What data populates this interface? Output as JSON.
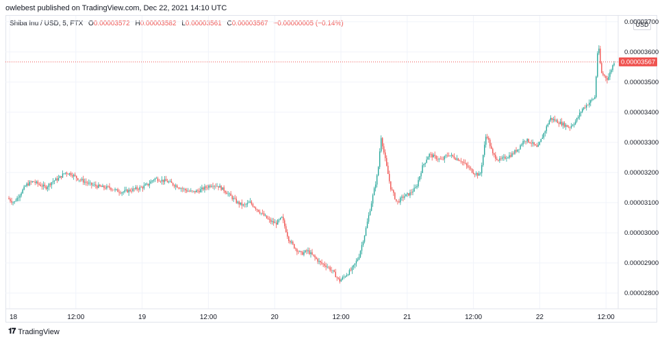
{
  "header": {
    "published": "owlebest published on TradingView.com, Dec 22, 2021 14:10 UTC"
  },
  "legend": {
    "symbol": "Shiba Inu / USD, 5, FTX",
    "o_label": "O",
    "o_value": "0.00003572",
    "h_label": "H",
    "h_value": "0.00003582",
    "l_label": "L",
    "l_value": "0.00003561",
    "c_label": "C",
    "c_value": "0.00003567",
    "change": "−0.00000005 (−0.14%)"
  },
  "currency_button": "USD",
  "footer": {
    "brand": "TradingView"
  },
  "colors": {
    "up": "#26a69a",
    "down": "#ef5350",
    "price_line": "#ef5350",
    "grid": "#f0f3fa"
  },
  "chart_data": {
    "type": "candlestick",
    "ylim": [
      2.75e-05,
      3.72e-05
    ],
    "y_ticks": [
      "0.00003700",
      "0.00003600",
      "0.00003500",
      "0.00003400",
      "0.00003300",
      "0.00003200",
      "0.00003100",
      "0.00003000",
      "0.00002900",
      "0.00002800"
    ],
    "x_ticks": [
      "18",
      "12:00",
      "19",
      "12:00",
      "20",
      "12:00",
      "21",
      "12:00",
      "22",
      "12:00"
    ],
    "last_price": "0.00003567",
    "price_path": [
      [
        0,
        3.115
      ],
      [
        2,
        3.1
      ],
      [
        4,
        3.13
      ],
      [
        6,
        3.16
      ],
      [
        8,
        3.17
      ],
      [
        10,
        3.16
      ],
      [
        12,
        3.15
      ],
      [
        14,
        3.17
      ],
      [
        16,
        3.18
      ],
      [
        18,
        3.2
      ],
      [
        20,
        3.195
      ],
      [
        22,
        3.18
      ],
      [
        24,
        3.17
      ],
      [
        26,
        3.16
      ],
      [
        28,
        3.155
      ],
      [
        30,
        3.15
      ],
      [
        32,
        3.15
      ],
      [
        34,
        3.14
      ],
      [
        36,
        3.135
      ],
      [
        38,
        3.14
      ],
      [
        40,
        3.145
      ],
      [
        42,
        3.15
      ],
      [
        44,
        3.16
      ],
      [
        46,
        3.18
      ],
      [
        48,
        3.175
      ],
      [
        50,
        3.17
      ],
      [
        52,
        3.16
      ],
      [
        54,
        3.15
      ],
      [
        56,
        3.14
      ],
      [
        58,
        3.135
      ],
      [
        60,
        3.14
      ],
      [
        62,
        3.15
      ],
      [
        64,
        3.16
      ],
      [
        66,
        3.155
      ],
      [
        68,
        3.14
      ],
      [
        70,
        3.12
      ],
      [
        72,
        3.1
      ],
      [
        74,
        3.09
      ],
      [
        76,
        3.1
      ],
      [
        78,
        3.08
      ],
      [
        80,
        3.06
      ],
      [
        82,
        3.04
      ],
      [
        84,
        3.03
      ],
      [
        86,
        3.05
      ],
      [
        88,
        2.98
      ],
      [
        90,
        2.95
      ],
      [
        92,
        2.93
      ],
      [
        94,
        2.94
      ],
      [
        96,
        2.92
      ],
      [
        98,
        2.9
      ],
      [
        100,
        2.89
      ],
      [
        102,
        2.87
      ],
      [
        104,
        2.84
      ],
      [
        106,
        2.86
      ],
      [
        108,
        2.88
      ],
      [
        110,
        2.92
      ],
      [
        112,
        3.0
      ],
      [
        114,
        3.1
      ],
      [
        116,
        3.2
      ],
      [
        117,
        3.32
      ],
      [
        118,
        3.26
      ],
      [
        120,
        3.15
      ],
      [
        122,
        3.1
      ],
      [
        124,
        3.12
      ],
      [
        126,
        3.13
      ],
      [
        128,
        3.15
      ],
      [
        130,
        3.22
      ],
      [
        132,
        3.26
      ],
      [
        134,
        3.25
      ],
      [
        136,
        3.24
      ],
      [
        138,
        3.26
      ],
      [
        140,
        3.25
      ],
      [
        142,
        3.24
      ],
      [
        144,
        3.22
      ],
      [
        146,
        3.2
      ],
      [
        148,
        3.19
      ],
      [
        150,
        3.33
      ],
      [
        152,
        3.26
      ],
      [
        154,
        3.24
      ],
      [
        156,
        3.25
      ],
      [
        158,
        3.26
      ],
      [
        160,
        3.28
      ],
      [
        162,
        3.31
      ],
      [
        164,
        3.3
      ],
      [
        166,
        3.28
      ],
      [
        168,
        3.33
      ],
      [
        170,
        3.38
      ],
      [
        172,
        3.37
      ],
      [
        174,
        3.36
      ],
      [
        176,
        3.35
      ],
      [
        178,
        3.37
      ],
      [
        180,
        3.41
      ],
      [
        182,
        3.43
      ],
      [
        184,
        3.45
      ],
      [
        185,
        3.63
      ],
      [
        186,
        3.53
      ],
      [
        188,
        3.51
      ],
      [
        190,
        3.567
      ]
    ]
  }
}
